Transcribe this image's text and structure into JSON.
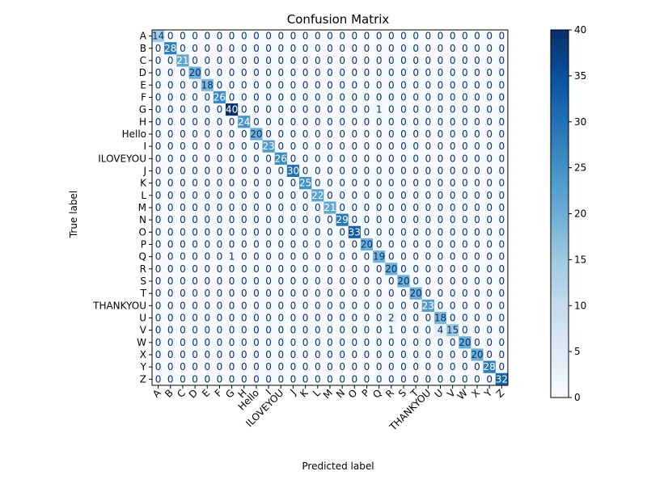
{
  "chart_data": {
    "type": "heatmap",
    "title": "Confusion Matrix",
    "xlabel": "Predicted label",
    "ylabel": "True label",
    "labels": [
      "A",
      "B",
      "C",
      "D",
      "E",
      "F",
      "G",
      "H",
      "Hello",
      "I",
      "ILOVEYOU",
      "J",
      "K",
      "L",
      "M",
      "N",
      "O",
      "P",
      "Q",
      "R",
      "S",
      "T",
      "THANKYOU",
      "U",
      "V",
      "W",
      "X",
      "Y",
      "Z"
    ],
    "values": [
      [
        14,
        0,
        0,
        0,
        0,
        0,
        0,
        0,
        0,
        0,
        0,
        0,
        0,
        0,
        0,
        0,
        0,
        0,
        0,
        0,
        0,
        0,
        0,
        0,
        0,
        0,
        0,
        0,
        0
      ],
      [
        0,
        28,
        0,
        0,
        0,
        0,
        0,
        0,
        0,
        0,
        0,
        0,
        0,
        0,
        0,
        0,
        0,
        0,
        0,
        0,
        0,
        0,
        0,
        0,
        0,
        0,
        0,
        0,
        0
      ],
      [
        0,
        0,
        21,
        0,
        0,
        0,
        0,
        0,
        0,
        0,
        0,
        0,
        0,
        0,
        0,
        0,
        0,
        0,
        0,
        0,
        0,
        0,
        0,
        0,
        0,
        0,
        0,
        0,
        0
      ],
      [
        0,
        0,
        0,
        20,
        0,
        0,
        0,
        0,
        0,
        0,
        0,
        0,
        0,
        0,
        0,
        0,
        0,
        0,
        0,
        0,
        0,
        0,
        0,
        0,
        0,
        0,
        0,
        0,
        0
      ],
      [
        0,
        0,
        0,
        0,
        18,
        0,
        0,
        0,
        0,
        0,
        0,
        0,
        0,
        0,
        0,
        0,
        0,
        0,
        0,
        0,
        0,
        0,
        0,
        0,
        0,
        0,
        0,
        0,
        0
      ],
      [
        0,
        0,
        0,
        0,
        0,
        26,
        0,
        0,
        0,
        0,
        0,
        0,
        0,
        0,
        0,
        0,
        0,
        0,
        0,
        0,
        0,
        0,
        0,
        0,
        0,
        0,
        0,
        0,
        0
      ],
      [
        0,
        0,
        0,
        0,
        0,
        0,
        40,
        0,
        0,
        0,
        0,
        0,
        0,
        0,
        0,
        0,
        0,
        0,
        1,
        0,
        0,
        0,
        0,
        0,
        0,
        0,
        0,
        0,
        0
      ],
      [
        0,
        0,
        0,
        0,
        0,
        0,
        0,
        24,
        0,
        0,
        0,
        0,
        0,
        0,
        0,
        0,
        0,
        0,
        0,
        0,
        0,
        0,
        0,
        0,
        0,
        0,
        0,
        0,
        0
      ],
      [
        0,
        0,
        0,
        0,
        0,
        0,
        0,
        0,
        20,
        0,
        0,
        0,
        0,
        0,
        0,
        0,
        0,
        0,
        0,
        0,
        0,
        0,
        0,
        0,
        0,
        0,
        0,
        0,
        0
      ],
      [
        0,
        0,
        0,
        0,
        0,
        0,
        0,
        0,
        0,
        23,
        0,
        0,
        0,
        0,
        0,
        0,
        0,
        0,
        0,
        0,
        0,
        0,
        0,
        0,
        0,
        0,
        0,
        0,
        0
      ],
      [
        0,
        0,
        0,
        0,
        0,
        0,
        0,
        0,
        0,
        0,
        26,
        0,
        0,
        0,
        0,
        0,
        0,
        0,
        0,
        0,
        0,
        0,
        0,
        0,
        0,
        0,
        0,
        0,
        0
      ],
      [
        0,
        0,
        0,
        0,
        0,
        0,
        0,
        0,
        0,
        0,
        0,
        30,
        0,
        0,
        0,
        0,
        0,
        0,
        0,
        0,
        0,
        0,
        0,
        0,
        0,
        0,
        0,
        0,
        0
      ],
      [
        0,
        0,
        0,
        0,
        0,
        0,
        0,
        0,
        0,
        0,
        0,
        0,
        25,
        0,
        0,
        0,
        0,
        0,
        0,
        0,
        0,
        0,
        0,
        0,
        0,
        0,
        0,
        0,
        0
      ],
      [
        0,
        0,
        0,
        0,
        0,
        0,
        0,
        0,
        0,
        0,
        0,
        0,
        0,
        22,
        0,
        0,
        0,
        0,
        0,
        0,
        0,
        0,
        0,
        0,
        0,
        0,
        0,
        0,
        0
      ],
      [
        0,
        0,
        0,
        0,
        0,
        0,
        0,
        0,
        0,
        0,
        0,
        0,
        0,
        0,
        21,
        0,
        0,
        0,
        0,
        0,
        0,
        0,
        0,
        0,
        0,
        0,
        0,
        0,
        0
      ],
      [
        0,
        0,
        0,
        0,
        0,
        0,
        0,
        0,
        0,
        0,
        0,
        0,
        0,
        0,
        0,
        29,
        0,
        0,
        0,
        0,
        0,
        0,
        0,
        0,
        0,
        0,
        0,
        0,
        0
      ],
      [
        0,
        0,
        0,
        0,
        0,
        0,
        0,
        0,
        0,
        0,
        0,
        0,
        0,
        0,
        0,
        0,
        33,
        0,
        0,
        0,
        0,
        0,
        0,
        0,
        0,
        0,
        0,
        0,
        0
      ],
      [
        0,
        0,
        0,
        0,
        0,
        0,
        0,
        0,
        0,
        0,
        0,
        0,
        0,
        0,
        0,
        0,
        0,
        20,
        0,
        0,
        0,
        0,
        0,
        0,
        0,
        0,
        0,
        0,
        0
      ],
      [
        0,
        0,
        0,
        0,
        0,
        0,
        1,
        0,
        0,
        0,
        0,
        0,
        0,
        0,
        0,
        0,
        0,
        0,
        19,
        0,
        0,
        0,
        0,
        0,
        0,
        0,
        0,
        0,
        0
      ],
      [
        0,
        0,
        0,
        0,
        0,
        0,
        0,
        0,
        0,
        0,
        0,
        0,
        0,
        0,
        0,
        0,
        0,
        0,
        0,
        20,
        0,
        0,
        0,
        0,
        0,
        0,
        0,
        0,
        0
      ],
      [
        0,
        0,
        0,
        0,
        0,
        0,
        0,
        0,
        0,
        0,
        0,
        0,
        0,
        0,
        0,
        0,
        0,
        0,
        0,
        0,
        20,
        0,
        0,
        0,
        0,
        0,
        0,
        0,
        0
      ],
      [
        0,
        0,
        0,
        0,
        0,
        0,
        0,
        0,
        0,
        0,
        0,
        0,
        0,
        0,
        0,
        0,
        0,
        0,
        0,
        0,
        0,
        20,
        0,
        0,
        0,
        0,
        0,
        0,
        0
      ],
      [
        0,
        0,
        0,
        0,
        0,
        0,
        0,
        0,
        0,
        0,
        0,
        0,
        0,
        0,
        0,
        0,
        0,
        0,
        0,
        0,
        0,
        0,
        23,
        0,
        0,
        0,
        0,
        0,
        0
      ],
      [
        0,
        0,
        0,
        0,
        0,
        0,
        0,
        0,
        0,
        0,
        0,
        0,
        0,
        0,
        0,
        0,
        0,
        0,
        0,
        2,
        0,
        0,
        0,
        18,
        0,
        0,
        0,
        0,
        0
      ],
      [
        0,
        0,
        0,
        0,
        0,
        0,
        0,
        0,
        0,
        0,
        0,
        0,
        0,
        0,
        0,
        0,
        0,
        0,
        0,
        1,
        0,
        0,
        0,
        4,
        15,
        0,
        0,
        0,
        0
      ],
      [
        0,
        0,
        0,
        0,
        0,
        0,
        0,
        0,
        0,
        0,
        0,
        0,
        0,
        0,
        0,
        0,
        0,
        0,
        0,
        0,
        0,
        0,
        0,
        0,
        0,
        20,
        0,
        0,
        0
      ],
      [
        0,
        0,
        0,
        0,
        0,
        0,
        0,
        0,
        0,
        0,
        0,
        0,
        0,
        0,
        0,
        0,
        0,
        0,
        0,
        0,
        0,
        0,
        0,
        0,
        0,
        0,
        20,
        0,
        0
      ],
      [
        0,
        0,
        0,
        0,
        0,
        0,
        0,
        0,
        0,
        0,
        0,
        0,
        0,
        0,
        0,
        0,
        0,
        0,
        0,
        0,
        0,
        0,
        0,
        0,
        0,
        0,
        0,
        28,
        0
      ],
      [
        0,
        0,
        0,
        0,
        0,
        0,
        0,
        0,
        0,
        0,
        0,
        0,
        0,
        0,
        0,
        0,
        0,
        0,
        0,
        0,
        0,
        0,
        0,
        0,
        0,
        0,
        0,
        0,
        32
      ]
    ],
    "colorbar": {
      "min": 0,
      "max": 40,
      "ticks": [
        0,
        5,
        10,
        15,
        20,
        25,
        30,
        35,
        40
      ]
    },
    "colormap": [
      "#f7fbff",
      "#deebf7",
      "#c6dbef",
      "#9ecae1",
      "#6baed6",
      "#4292c6",
      "#2171b5",
      "#08519c",
      "#08306b"
    ],
    "text_colors": {
      "light": "#ffffff",
      "dark": "#08306b"
    }
  }
}
